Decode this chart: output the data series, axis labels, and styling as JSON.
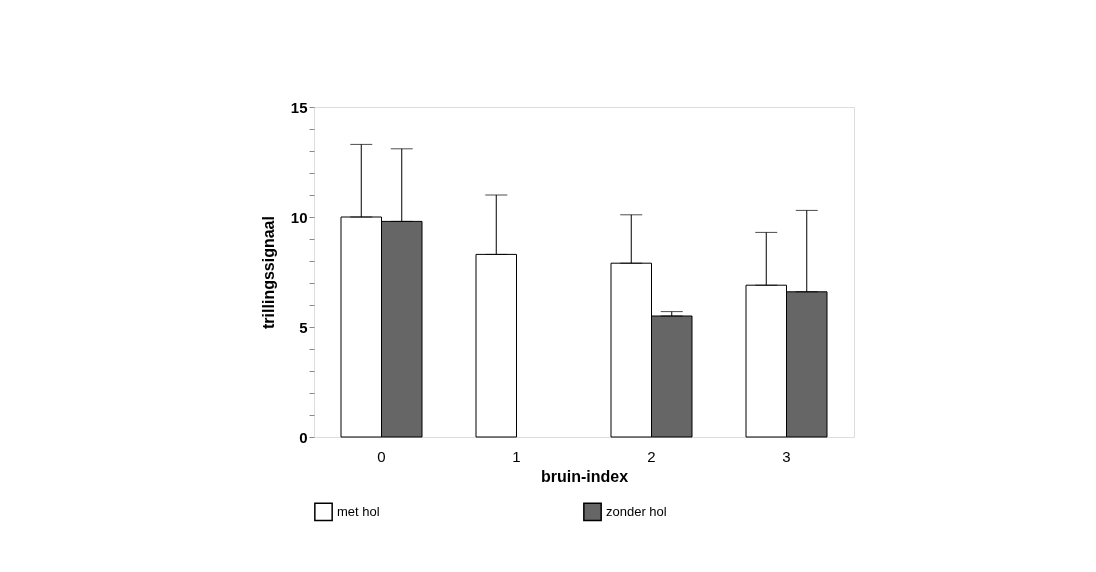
{
  "chart_data": {
    "type": "bar",
    "xlabel": "bruin-index",
    "ylabel": "trillingssignaal",
    "categories": [
      "0",
      "1",
      "2",
      "3"
    ],
    "series": [
      {
        "name": "met hol",
        "color": "#ffffff",
        "values": [
          10.0,
          8.3,
          7.9,
          6.9
        ],
        "errors": [
          [
            10.0,
            13.3
          ],
          [
            8.3,
            11.0
          ],
          [
            7.9,
            10.1
          ],
          [
            6.9,
            9.3
          ]
        ]
      },
      {
        "name": "zonder hol",
        "color": "#666666",
        "values": [
          9.8,
          null,
          5.5,
          6.6
        ],
        "errors": [
          [
            9.8,
            13.1
          ],
          null,
          [
            5.5,
            5.7
          ],
          [
            6.6,
            10.3
          ]
        ]
      }
    ],
    "ylim": [
      0,
      15
    ],
    "yticks": [
      0,
      {
        "value": 1,
        "label": null
      },
      {
        "value": 2,
        "label": null
      },
      {
        "value": 3,
        "label": null
      },
      {
        "value": 4,
        "label": null
      },
      5,
      {
        "value": 6,
        "label": null
      },
      {
        "value": 7,
        "label": null
      },
      {
        "value": 8,
        "label": null
      },
      {
        "value": 9,
        "label": null
      },
      10,
      {
        "value": 11,
        "label": null
      },
      {
        "value": 12,
        "label": null
      },
      {
        "value": 13,
        "label": null
      },
      {
        "value": 14,
        "label": null
      },
      15
    ],
    "grid": false,
    "legend": "bottom"
  }
}
